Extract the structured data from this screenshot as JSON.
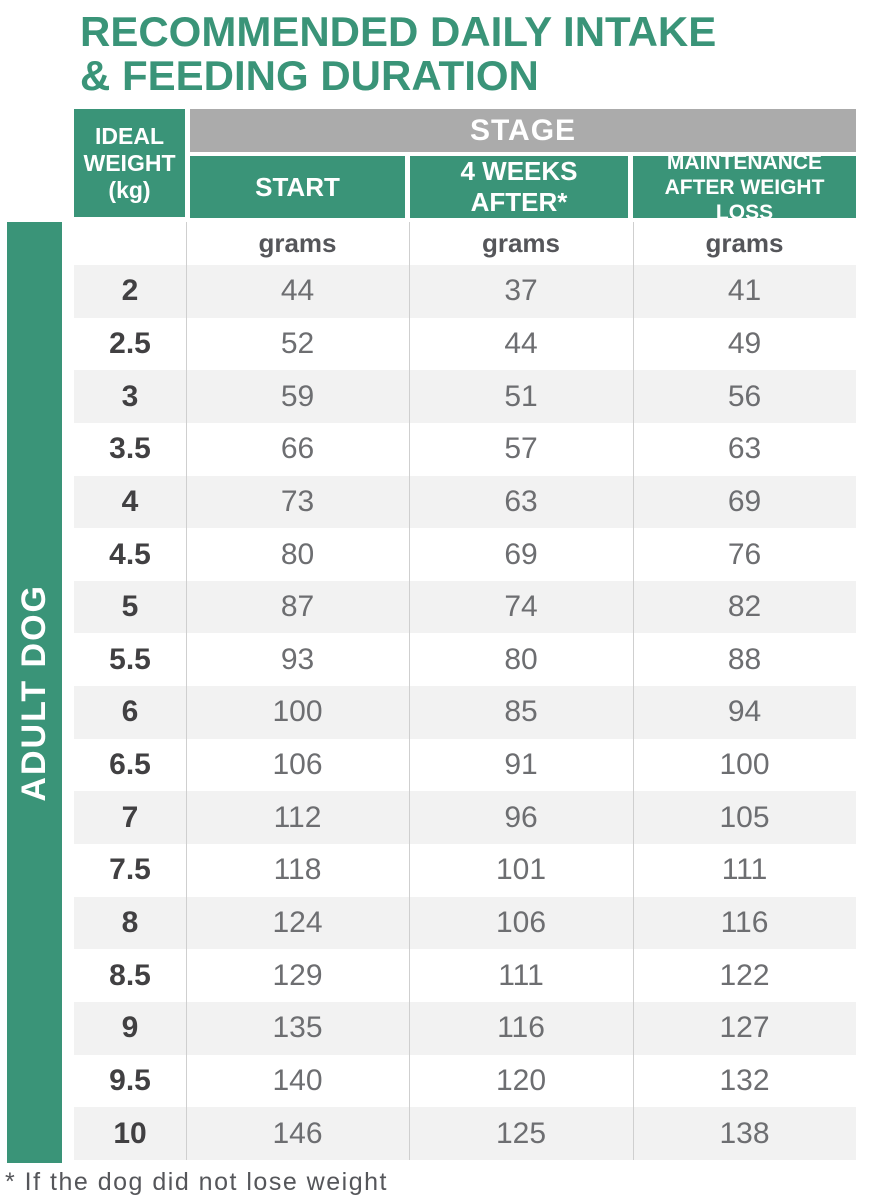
{
  "title": {
    "line1": "RECOMMENDED DAILY INTAKE",
    "line2": "& FEEDING DURATION"
  },
  "colors": {
    "green": "#3a9478",
    "header_gray": "#ababab",
    "row_alt": "#f2f2f2",
    "divider": "#cfcfcf",
    "value_text": "#6d6e71",
    "weight_text": "#414042",
    "label_text": "#55565a"
  },
  "sidebar": {
    "label": "ADULT DOG"
  },
  "table": {
    "corner": {
      "lines": [
        "IDEAL",
        "WEIGHT",
        "(kg)"
      ]
    },
    "stage_label": "STAGE",
    "columns": [
      "START",
      "4 WEEKS AFTER*",
      "MAINTENANCE AFTER WEIGHT LOSS"
    ],
    "units": [
      "grams",
      "grams",
      "grams"
    ],
    "rows": [
      {
        "weight": "2",
        "start": "44",
        "weeks4": "37",
        "maintenance": "41"
      },
      {
        "weight": "2.5",
        "start": "52",
        "weeks4": "44",
        "maintenance": "49"
      },
      {
        "weight": "3",
        "start": "59",
        "weeks4": "51",
        "maintenance": "56"
      },
      {
        "weight": "3.5",
        "start": "66",
        "weeks4": "57",
        "maintenance": "63"
      },
      {
        "weight": "4",
        "start": "73",
        "weeks4": "63",
        "maintenance": "69"
      },
      {
        "weight": "4.5",
        "start": "80",
        "weeks4": "69",
        "maintenance": "76"
      },
      {
        "weight": "5",
        "start": "87",
        "weeks4": "74",
        "maintenance": "82"
      },
      {
        "weight": "5.5",
        "start": "93",
        "weeks4": "80",
        "maintenance": "88"
      },
      {
        "weight": "6",
        "start": "100",
        "weeks4": "85",
        "maintenance": "94"
      },
      {
        "weight": "6.5",
        "start": "106",
        "weeks4": "91",
        "maintenance": "100"
      },
      {
        "weight": "7",
        "start": "112",
        "weeks4": "96",
        "maintenance": "105"
      },
      {
        "weight": "7.5",
        "start": "118",
        "weeks4": "101",
        "maintenance": "111"
      },
      {
        "weight": "8",
        "start": "124",
        "weeks4": "106",
        "maintenance": "116"
      },
      {
        "weight": "8.5",
        "start": "129",
        "weeks4": "111",
        "maintenance": "122"
      },
      {
        "weight": "9",
        "start": "135",
        "weeks4": "116",
        "maintenance": "127"
      },
      {
        "weight": "9.5",
        "start": "140",
        "weeks4": "120",
        "maintenance": "132"
      },
      {
        "weight": "10",
        "start": "146",
        "weeks4": "125",
        "maintenance": "138"
      }
    ]
  },
  "footnote": "* If the dog did not lose weight"
}
